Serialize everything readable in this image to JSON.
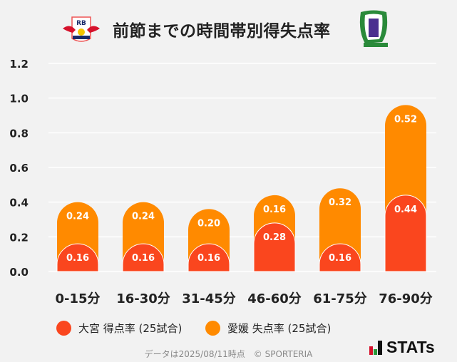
{
  "title": "前節までの時間帯別得失点率",
  "logos": {
    "left": "RB OMIYA ARDIJA",
    "right": "EFC"
  },
  "colors": {
    "omiya": "#FA461E",
    "ehime": "#FF8A00",
    "background": "#f2f2f2"
  },
  "chart_data": {
    "type": "bar",
    "stacked": true,
    "title": "前節までの時間帯別得失点率",
    "categories": [
      "0-15分",
      "16-30分",
      "31-45分",
      "46-60分",
      "61-75分",
      "76-90分"
    ],
    "series": [
      {
        "name": "大宮 得点率 (25試合)",
        "values": [
          0.16,
          0.16,
          0.16,
          0.28,
          0.16,
          0.44
        ]
      },
      {
        "name": "愛媛 失点率 (25試合)",
        "values": [
          0.24,
          0.24,
          0.2,
          0.16,
          0.32,
          0.52
        ]
      }
    ],
    "yticks": [
      "0.0",
      "0.2",
      "0.4",
      "0.6",
      "0.8",
      "1.0",
      "1.2"
    ],
    "ylim": [
      0,
      1.2
    ],
    "grid": true,
    "legend": "bottom"
  },
  "footer": "データは2025/08/11時点　© SPORTERIA",
  "brand": "STATs"
}
